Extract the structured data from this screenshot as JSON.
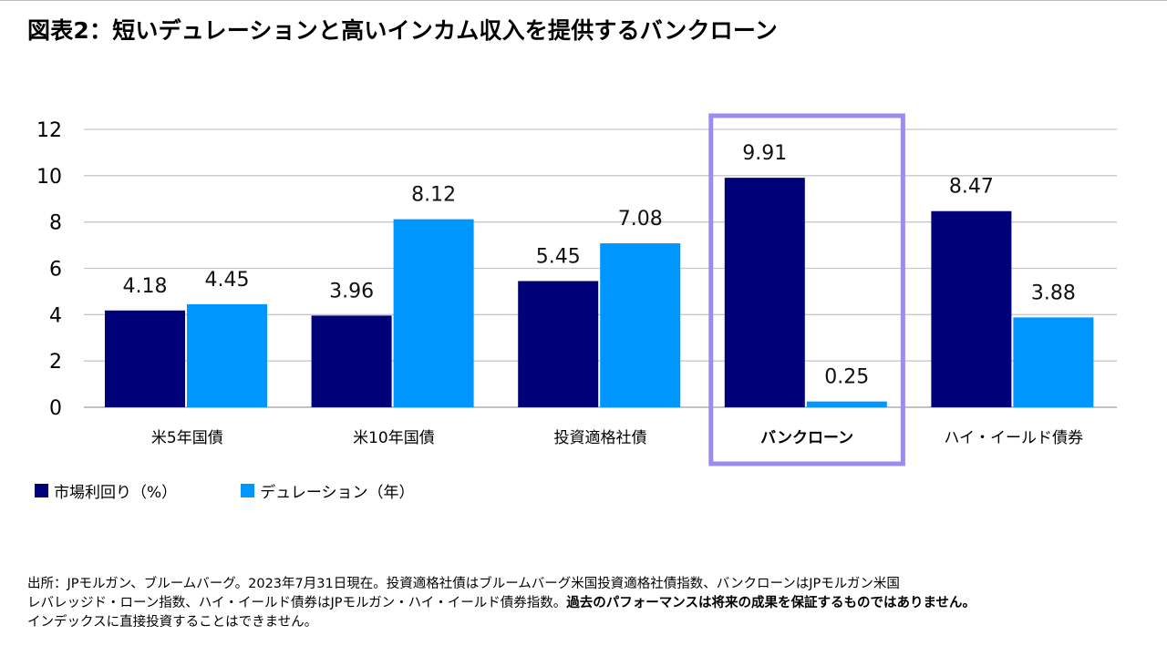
{
  "title": "図表2：短いデュレーションと高いインカム収入を提供するバンクローン",
  "chart_data": {
    "type": "bar",
    "categories": [
      "米5年国債",
      "米10年国債",
      "投資適格社債",
      "バンクローン",
      "ハイ・イールド債券"
    ],
    "highlight_category": "バンクローン",
    "series": [
      {
        "name": "市場利回り（%）",
        "values": [
          4.18,
          3.96,
          5.45,
          9.91,
          8.47
        ],
        "color": "#000078"
      },
      {
        "name": "デュレーション（年）",
        "values": [
          4.45,
          8.12,
          7.08,
          0.25,
          3.88
        ],
        "color": "#0096ff"
      }
    ],
    "ylim": [
      0,
      12
    ],
    "yticks": [
      0,
      2,
      4,
      6,
      8,
      10,
      12
    ],
    "grid": true,
    "highlight_color": "#9b8cf0",
    "legend_position": "bottom-left"
  },
  "legend": {
    "items": [
      {
        "label": "市場利回り（%）",
        "color": "#000078"
      },
      {
        "label": "デュレーション（年）",
        "color": "#0096ff"
      }
    ]
  },
  "source": {
    "line1": "出所：JPモルガン、ブルームバーグ。2023年7月31日現在。投資適格社債はブルームバーグ米国投資適格社債指数、バンクローンはJPモルガン米国",
    "line2_normal": "レバレッジド・ローン指数、ハイ・イールド債券はJPモルガン・ハイ・イールド債券指数。",
    "line2_bold": "過去のパフォーマンスは将来の成果を保証するものではありません。",
    "line3": "インデックスに直接投資することはできません。"
  }
}
